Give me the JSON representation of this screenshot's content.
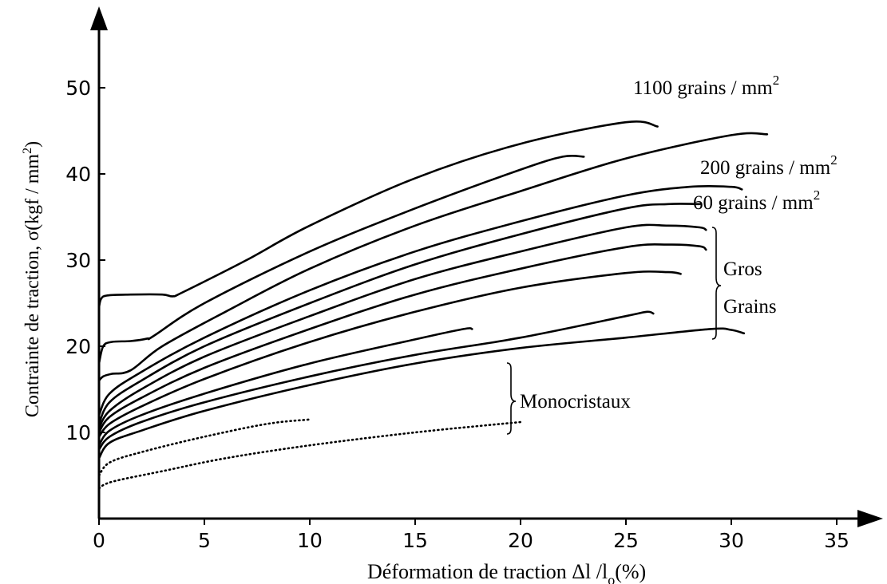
{
  "chart_data": {
    "type": "line",
    "xlabel_main": "Déformation de traction Δl /l",
    "xlabel_sub": "o",
    "xlabel_tail": "(%)",
    "ylabel_main": "Contrainte de traction, σ(kgf / mm",
    "ylabel_sup": "2",
    "ylabel_tail": ")",
    "xlim": [
      0,
      39
    ],
    "ylim": [
      0,
      55
    ],
    "x_ticks": [
      "0",
      "5",
      "10",
      "15",
      "20",
      "25",
      "30",
      "35"
    ],
    "y_ticks": [
      "10",
      "20",
      "30",
      "40",
      "50"
    ],
    "annotations": {
      "g1100": "1100 grains / mm",
      "g200": "200 grains / mm",
      "g60": "60 grains / mm",
      "sup": "2",
      "gros": "Gros",
      "grains": "Grains",
      "mono": "Monocristaux"
    },
    "series": [
      {
        "style": "solid",
        "points": [
          [
            0,
            24.5
          ],
          [
            0.1,
            25.5
          ],
          [
            0.4,
            25.9
          ],
          [
            1.5,
            26
          ],
          [
            3,
            26
          ],
          [
            3.5,
            25.8
          ],
          [
            4,
            26.3
          ],
          [
            7,
            30
          ],
          [
            10,
            34
          ],
          [
            15,
            39.5
          ],
          [
            20,
            43.5
          ],
          [
            25,
            46
          ],
          [
            26.5,
            45.5
          ]
        ]
      },
      {
        "style": "solid",
        "points": [
          [
            0,
            18
          ],
          [
            0.2,
            20
          ],
          [
            0.6,
            20.5
          ],
          [
            1.5,
            20.6
          ],
          [
            2.3,
            20.9
          ],
          [
            2.6,
            21.2
          ],
          [
            5,
            25
          ],
          [
            10,
            31
          ],
          [
            15,
            36
          ],
          [
            20,
            40.5
          ],
          [
            22,
            42
          ],
          [
            23,
            42
          ]
        ]
      },
      {
        "style": "solid",
        "points": [
          [
            0,
            16
          ],
          [
            0.2,
            16.5
          ],
          [
            0.6,
            16.8
          ],
          [
            1.5,
            17.2
          ],
          [
            3,
            20
          ],
          [
            6,
            24
          ],
          [
            10,
            29
          ],
          [
            15,
            34
          ],
          [
            20,
            38
          ],
          [
            25,
            41.8
          ],
          [
            30,
            44.5
          ],
          [
            31.7,
            44.6
          ]
        ]
      },
      {
        "style": "solid",
        "points": [
          [
            0,
            12
          ],
          [
            0.5,
            14.5
          ],
          [
            2,
            17
          ],
          [
            5,
            21
          ],
          [
            10,
            26.5
          ],
          [
            15,
            31
          ],
          [
            20,
            34.5
          ],
          [
            25,
            37.5
          ],
          [
            28,
            38.5
          ],
          [
            30,
            38.5
          ],
          [
            30.5,
            38.2
          ]
        ]
      },
      {
        "style": "solid",
        "points": [
          [
            0,
            11
          ],
          [
            0.5,
            13.5
          ],
          [
            2,
            16
          ],
          [
            5,
            20
          ],
          [
            10,
            25
          ],
          [
            15,
            29.5
          ],
          [
            20,
            33
          ],
          [
            25,
            36
          ],
          [
            27,
            36.5
          ],
          [
            28.5,
            36.5
          ]
        ]
      },
      {
        "style": "solid",
        "points": [
          [
            0,
            10.5
          ],
          [
            0.5,
            12.5
          ],
          [
            2,
            15
          ],
          [
            5,
            18.8
          ],
          [
            10,
            23.5
          ],
          [
            15,
            27.8
          ],
          [
            20,
            31
          ],
          [
            25,
            33.8
          ],
          [
            27,
            34
          ],
          [
            28.5,
            33.8
          ],
          [
            28.8,
            33.5
          ]
        ]
      },
      {
        "style": "solid",
        "points": [
          [
            0,
            10
          ],
          [
            0.5,
            11.8
          ],
          [
            2,
            14
          ],
          [
            5,
            17.5
          ],
          [
            10,
            22
          ],
          [
            15,
            26
          ],
          [
            20,
            29
          ],
          [
            25,
            31.5
          ],
          [
            27,
            31.8
          ],
          [
            28.5,
            31.6
          ],
          [
            28.8,
            31.2
          ]
        ]
      },
      {
        "style": "solid",
        "points": [
          [
            0,
            9.5
          ],
          [
            0.5,
            11
          ],
          [
            2,
            13
          ],
          [
            5,
            16.2
          ],
          [
            10,
            20.5
          ],
          [
            15,
            24
          ],
          [
            20,
            26.8
          ],
          [
            25,
            28.5
          ],
          [
            27,
            28.6
          ],
          [
            27.6,
            28.4
          ]
        ]
      },
      {
        "style": "solid",
        "points": [
          [
            0,
            8.5
          ],
          [
            0.5,
            10.2
          ],
          [
            2,
            12
          ],
          [
            5,
            14.5
          ],
          [
            10,
            18
          ],
          [
            15,
            20.8
          ],
          [
            17.3,
            22
          ],
          [
            17.7,
            22
          ]
        ]
      },
      {
        "style": "solid",
        "points": [
          [
            0,
            8
          ],
          [
            0.5,
            9.5
          ],
          [
            2,
            11.2
          ],
          [
            5,
            13.5
          ],
          [
            10,
            16.5
          ],
          [
            15,
            19
          ],
          [
            20,
            21
          ],
          [
            25,
            23.5
          ],
          [
            26,
            24
          ],
          [
            26.3,
            23.8
          ]
        ]
      },
      {
        "style": "solid",
        "points": [
          [
            0,
            7
          ],
          [
            0.5,
            8.8
          ],
          [
            2,
            10.2
          ],
          [
            5,
            12.5
          ],
          [
            10,
            15.5
          ],
          [
            15,
            18
          ],
          [
            20,
            19.8
          ],
          [
            25,
            21
          ],
          [
            29,
            22
          ],
          [
            30,
            21.9
          ],
          [
            30.6,
            21.5
          ]
        ]
      },
      {
        "style": "dotted",
        "points": [
          [
            0,
            5
          ],
          [
            0.5,
            6.5
          ],
          [
            2,
            7.7
          ],
          [
            5,
            9.5
          ],
          [
            8,
            11
          ],
          [
            10,
            11.5
          ]
        ]
      },
      {
        "style": "dotted",
        "points": [
          [
            0,
            3.5
          ],
          [
            0.3,
            4
          ],
          [
            1,
            4.5
          ],
          [
            3,
            5.5
          ],
          [
            6,
            7
          ],
          [
            10,
            8.5
          ],
          [
            15,
            10
          ],
          [
            20,
            11.2
          ]
        ]
      }
    ]
  }
}
